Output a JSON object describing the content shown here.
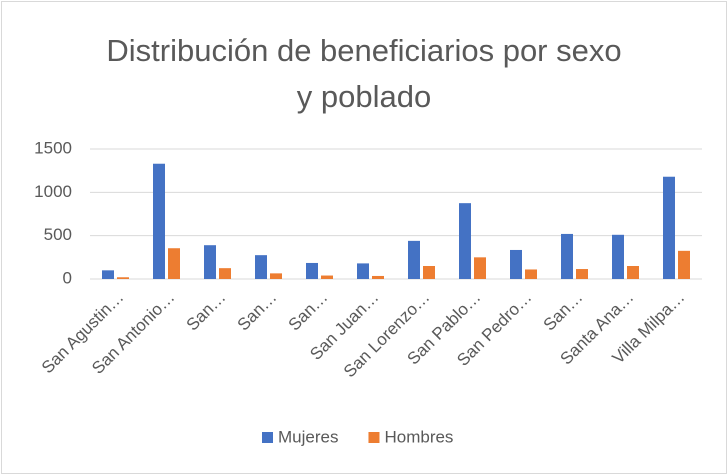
{
  "chart_data": {
    "type": "bar",
    "title": "Distribución de beneficiarios por sexo y poblado",
    "categories": [
      "San Agustin…",
      "San Antonio…",
      "San…",
      "San…",
      "San…",
      "San Juan…",
      "San Lorenzo…",
      "San Pablo…",
      "San Pedro…",
      "San…",
      "Santa Ana…",
      "Villa Milpa…"
    ],
    "series": [
      {
        "name": "Mujeres",
        "color": "#4472c4",
        "values": [
          100,
          1330,
          390,
          275,
          185,
          180,
          440,
          875,
          335,
          520,
          510,
          1180
        ]
      },
      {
        "name": "Hombres",
        "color": "#ed7d31",
        "values": [
          20,
          355,
          125,
          65,
          40,
          35,
          150,
          250,
          110,
          115,
          150,
          325
        ]
      }
    ],
    "ylim": [
      0,
      1500
    ],
    "yticks": [
      0,
      500,
      1000,
      1500
    ],
    "grid": true,
    "legend": "bottom"
  }
}
